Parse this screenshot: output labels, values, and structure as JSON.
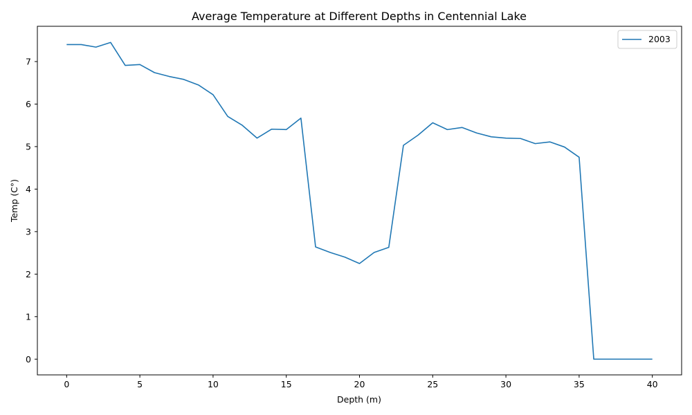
{
  "chart_data": {
    "type": "line",
    "title": "Average Temperature at Different Depths in Centennial Lake",
    "xlabel": "Depth (m)",
    "ylabel": "Temp (C°)",
    "xlim": [
      -2,
      42
    ],
    "ylim": [
      -0.37,
      7.83
    ],
    "xticks": [
      0,
      5,
      10,
      15,
      20,
      25,
      30,
      35,
      40
    ],
    "yticks": [
      0,
      1,
      2,
      3,
      4,
      5,
      6,
      7
    ],
    "grid": false,
    "legend_position": "top-right",
    "series": [
      {
        "name": "2003",
        "color": "#1f77b4",
        "x": [
          0,
          1,
          2,
          3,
          4,
          5,
          6,
          7,
          8,
          9,
          10,
          11,
          12,
          13,
          14,
          15,
          16,
          17,
          18,
          19,
          20,
          21,
          22,
          23,
          24,
          25,
          26,
          27,
          28,
          29,
          30,
          31,
          32,
          33,
          34,
          35,
          36,
          37,
          38,
          39,
          40
        ],
        "y": [
          7.4,
          7.4,
          7.34,
          7.45,
          6.91,
          6.93,
          6.74,
          6.65,
          6.58,
          6.45,
          6.22,
          5.71,
          5.5,
          5.2,
          5.41,
          5.4,
          5.67,
          2.64,
          2.51,
          2.4,
          2.25,
          2.51,
          2.63,
          5.03,
          5.27,
          5.56,
          5.4,
          5.45,
          5.32,
          5.23,
          5.2,
          5.19,
          5.07,
          5.11,
          4.99,
          4.75,
          0.0,
          0.0,
          0.0,
          0.0,
          0.0
        ]
      }
    ]
  }
}
